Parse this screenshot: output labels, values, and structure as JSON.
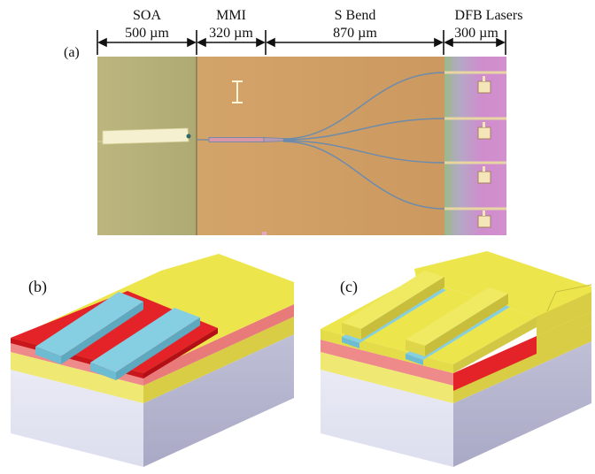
{
  "panel_a": {
    "label": "(a)",
    "sections": [
      {
        "name": "SOA",
        "length": "500 µm"
      },
      {
        "name": "MMI",
        "length": "320 µm"
      },
      {
        "name": "S Bend",
        "length": "870 µm"
      },
      {
        "name": "DFB Lasers",
        "length": "300 µm"
      }
    ]
  },
  "panel_b": {
    "label": "(b)"
  },
  "panel_c": {
    "label": "(c)"
  },
  "colors": {
    "soa_region": "#b4b07a",
    "chip_orange": "#cf9f66",
    "laser_region": "#c890c8",
    "yellow": "#ece64c",
    "red": "#e5232b",
    "pink": "#ec7a7a",
    "cyan": "#86cfe2",
    "substrate": "#dfe1ef"
  }
}
